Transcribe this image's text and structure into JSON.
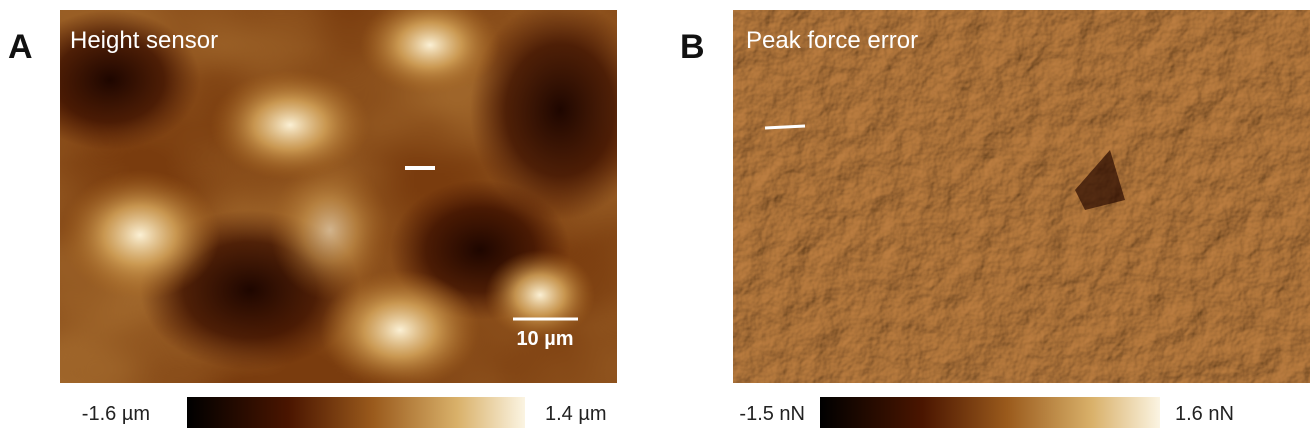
{
  "panels": [
    {
      "letter": "A",
      "title": "Height sensor",
      "scale_bar": "10 µm",
      "colorbar": {
        "min_label": "-1.6 µm",
        "max_label": "1.4 µm"
      }
    },
    {
      "letter": "B",
      "title": "Peak force error",
      "colorbar": {
        "min_label": "-1.5 nN",
        "max_label": "1.6 nN"
      }
    }
  ]
}
